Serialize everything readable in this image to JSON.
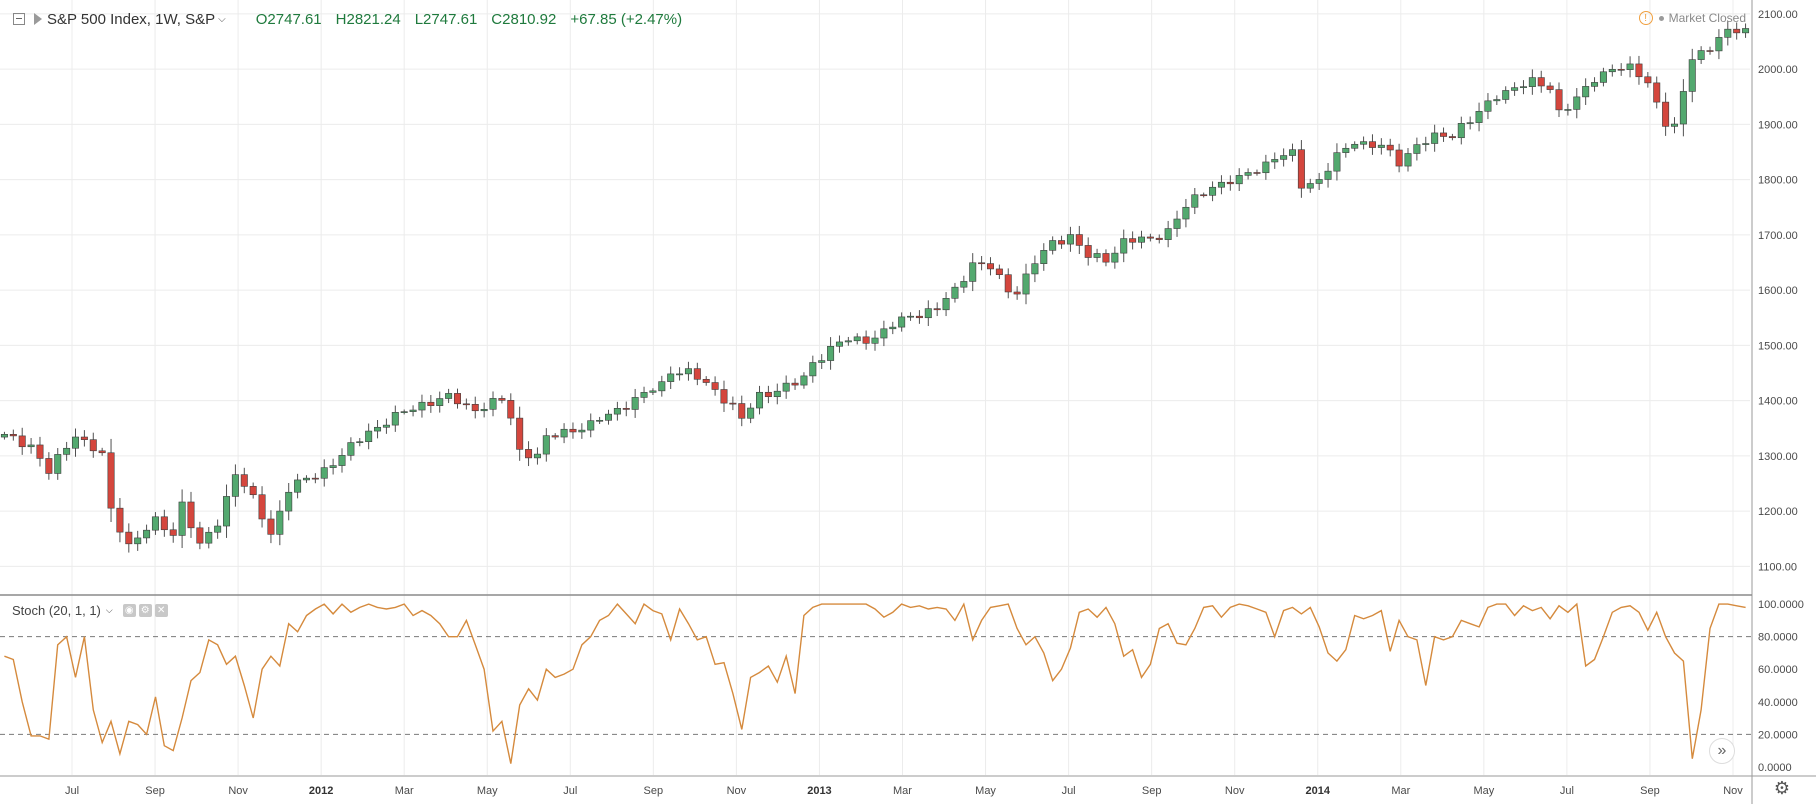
{
  "header": {
    "title": "S&P 500 Index, 1W, S&P",
    "open": "O2747.61",
    "high": "H2821.24",
    "low": "L2747.61",
    "close": "C2810.92",
    "change": "+67.85 (+2.47%)",
    "status": "Market Closed"
  },
  "indicator": {
    "label": "Stoch (20, 1, 1)"
  },
  "icons": {
    "collapse": "collapse-toggle-icon",
    "symbol_flag": "flag-icon",
    "dropdown": "chevron-down-icon",
    "warning": "warning-icon",
    "settings": "gear-icon",
    "scroll": "double-chevron-right-icon"
  },
  "colors": {
    "up": "#53a96f",
    "down": "#d4463d",
    "wick": "#505050",
    "stoch_line": "#d58a3d",
    "grid": "#ececec",
    "level_line": "#7a7a7a"
  },
  "chart_data": [
    {
      "type": "candlestick",
      "title": "S&P 500 Index, 1W, S&P",
      "ylim": [
        1050,
        2125
      ],
      "yticks": [
        "1100.00",
        "1200.00",
        "1300.00",
        "1400.00",
        "1500.00",
        "1600.00",
        "1700.00",
        "1800.00",
        "1900.00",
        "2000.00",
        "2100.00"
      ],
      "x_labels": [
        {
          "label": "Jul",
          "bold": false
        },
        {
          "label": "Sep",
          "bold": false
        },
        {
          "label": "Nov",
          "bold": false
        },
        {
          "label": "2012",
          "bold": true
        },
        {
          "label": "Mar",
          "bold": false
        },
        {
          "label": "May",
          "bold": false
        },
        {
          "label": "Jul",
          "bold": false
        },
        {
          "label": "Sep",
          "bold": false
        },
        {
          "label": "Nov",
          "bold": false
        },
        {
          "label": "2013",
          "bold": true
        },
        {
          "label": "Mar",
          "bold": false
        },
        {
          "label": "May",
          "bold": false
        },
        {
          "label": "Jul",
          "bold": false
        },
        {
          "label": "Sep",
          "bold": false
        },
        {
          "label": "Nov",
          "bold": false
        },
        {
          "label": "2014",
          "bold": true
        },
        {
          "label": "Mar",
          "bold": false
        },
        {
          "label": "May",
          "bold": false
        },
        {
          "label": "Jul",
          "bold": false
        },
        {
          "label": "Sep",
          "bold": false
        },
        {
          "label": "Nov",
          "bold": false
        }
      ],
      "keypoints": [
        [
          0,
          1335
        ],
        [
          3,
          1320
        ],
        [
          5,
          1270
        ],
        [
          8,
          1340
        ],
        [
          11,
          1300
        ],
        [
          12,
          1200
        ],
        [
          14,
          1140
        ],
        [
          17,
          1180
        ],
        [
          19,
          1160
        ],
        [
          20,
          1215
        ],
        [
          22,
          1135
        ],
        [
          24,
          1180
        ],
        [
          26,
          1270
        ],
        [
          28,
          1220
        ],
        [
          30,
          1160
        ],
        [
          32,
          1240
        ],
        [
          35,
          1265
        ],
        [
          38,
          1300
        ],
        [
          41,
          1345
        ],
        [
          44,
          1370
        ],
        [
          47,
          1395
        ],
        [
          50,
          1405
        ],
        [
          53,
          1385
        ],
        [
          56,
          1400
        ],
        [
          57,
          1370
        ],
        [
          58,
          1310
        ],
        [
          60,
          1300
        ],
        [
          61,
          1330
        ],
        [
          63,
          1345
        ],
        [
          66,
          1355
        ],
        [
          69,
          1385
        ],
        [
          72,
          1410
        ],
        [
          74,
          1430
        ],
        [
          75,
          1455
        ],
        [
          77,
          1450
        ],
        [
          78,
          1440
        ],
        [
          80,
          1420
        ],
        [
          82,
          1390
        ],
        [
          83,
          1365
        ],
        [
          85,
          1410
        ],
        [
          89,
          1430
        ],
        [
          90,
          1440
        ],
        [
          91,
          1470
        ],
        [
          94,
          1505
        ],
        [
          98,
          1515
        ],
        [
          100,
          1535
        ],
        [
          102,
          1555
        ],
        [
          105,
          1565
        ],
        [
          107,
          1600
        ],
        [
          109,
          1650
        ],
        [
          111,
          1640
        ],
        [
          113,
          1600
        ],
        [
          114,
          1600
        ],
        [
          116,
          1650
        ],
        [
          118,
          1685
        ],
        [
          120,
          1700
        ],
        [
          122,
          1660
        ],
        [
          124,
          1655
        ],
        [
          126,
          1690
        ],
        [
          129,
          1690
        ],
        [
          131,
          1710
        ],
        [
          133,
          1750
        ],
        [
          136,
          1790
        ],
        [
          139,
          1800
        ],
        [
          141,
          1820
        ],
        [
          143,
          1840
        ],
        [
          145,
          1845
        ],
        [
          146,
          1790
        ],
        [
          148,
          1800
        ],
        [
          150,
          1840
        ],
        [
          152,
          1870
        ],
        [
          155,
          1860
        ],
        [
          157,
          1830
        ],
        [
          159,
          1865
        ],
        [
          161,
          1875
        ],
        [
          163,
          1880
        ],
        [
          164,
          1900
        ],
        [
          166,
          1920
        ],
        [
          168,
          1950
        ],
        [
          170,
          1970
        ],
        [
          172,
          1975
        ],
        [
          174,
          1965
        ],
        [
          175,
          1925
        ],
        [
          177,
          1945
        ],
        [
          179,
          1980
        ],
        [
          181,
          2005
        ],
        [
          183,
          2000
        ],
        [
          185,
          1975
        ],
        [
          187,
          1905
        ],
        [
          188,
          1895
        ],
        [
          189,
          1955
        ],
        [
          190,
          2020
        ],
        [
          192,
          2040
        ],
        [
          193,
          2060
        ]
      ]
    },
    {
      "type": "line",
      "title": "Stoch (20, 1, 1)",
      "ylim": [
        -5,
        105
      ],
      "yticks": [
        "0.0000",
        "20.0000",
        "40.0000",
        "60.0000",
        "80.0000",
        "100.0000"
      ],
      "levels": [
        20,
        80
      ],
      "values": [
        68,
        66,
        40,
        19,
        19,
        17,
        75,
        80,
        55,
        80,
        35,
        15,
        28,
        8,
        28,
        26,
        20,
        43,
        13,
        10,
        30,
        53,
        58,
        78,
        75,
        63,
        68,
        50,
        30,
        60,
        68,
        62,
        88,
        83,
        93,
        97,
        100,
        94,
        100,
        95,
        98,
        100,
        98,
        97,
        98,
        100,
        93,
        96,
        93,
        88,
        80,
        80,
        90,
        75,
        60,
        22,
        28,
        2,
        38,
        48,
        41,
        60,
        55,
        57,
        60,
        75,
        80,
        90,
        93,
        100,
        94,
        88,
        100,
        96,
        94,
        78,
        97,
        88,
        78,
        80,
        63,
        64,
        45,
        23,
        55,
        58,
        62,
        52,
        68,
        45,
        93,
        98,
        100,
        100,
        100,
        100,
        100,
        100,
        97,
        92,
        95,
        100,
        98,
        99,
        97,
        98,
        97,
        90,
        100,
        78,
        90,
        98,
        99,
        100,
        85,
        75,
        80,
        70,
        53,
        60,
        73,
        95,
        97,
        92,
        98,
        88,
        68,
        72,
        55,
        63,
        85,
        88,
        76,
        75,
        85,
        98,
        99,
        92,
        98,
        100,
        99,
        97,
        95,
        80,
        96,
        98,
        94,
        98,
        86,
        70,
        65,
        72,
        93,
        91,
        93,
        96,
        71,
        90,
        80,
        78,
        50,
        80,
        78,
        80,
        90,
        88,
        86,
        98,
        100,
        100,
        93,
        99,
        96,
        98,
        91,
        99,
        95,
        100,
        62,
        66,
        80,
        95,
        98,
        99,
        95,
        84,
        95,
        80,
        70,
        65,
        5,
        35,
        85,
        100,
        100,
        99,
        98
      ]
    }
  ]
}
